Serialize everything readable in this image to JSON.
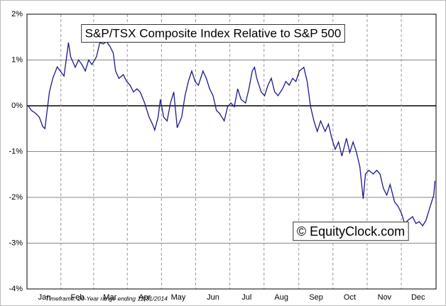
{
  "chart_data": {
    "type": "line",
    "title": "S&P/TSX Composite Index Relative to S&P 500",
    "watermark": "© EquityClock.com",
    "footnote": "Timeframe: 20-Year range ending 12/31/2014",
    "xlim": [
      0,
      365
    ],
    "xticks": [
      {
        "value": 15.5,
        "label": "Jan"
      },
      {
        "value": 45,
        "label": "Feb"
      },
      {
        "value": 74,
        "label": "Mar"
      },
      {
        "value": 105,
        "label": "Apr"
      },
      {
        "value": 135,
        "label": "May"
      },
      {
        "value": 166,
        "label": "Jun"
      },
      {
        "value": 196,
        "label": "Jul"
      },
      {
        "value": 227,
        "label": "Aug"
      },
      {
        "value": 258,
        "label": "Sep"
      },
      {
        "value": 288,
        "label": "Oct"
      },
      {
        "value": 319,
        "label": "Nov"
      },
      {
        "value": 349,
        "label": "Dec"
      }
    ],
    "ylim": [
      -4,
      2
    ],
    "yticks": [
      {
        "value": 2,
        "label": "2%"
      },
      {
        "value": 1,
        "label": "1%"
      },
      {
        "value": 0,
        "label": "0%"
      },
      {
        "value": -1,
        "label": "-1%"
      },
      {
        "value": -2,
        "label": "-2%"
      },
      {
        "value": -3,
        "label": "-3%"
      },
      {
        "value": -4,
        "label": "-4%"
      }
    ],
    "grid": true,
    "x": [
      1,
      4,
      8,
      11,
      14,
      16,
      18,
      20,
      23,
      27,
      30,
      33,
      35,
      37,
      39,
      43,
      46,
      49,
      52,
      55,
      58,
      62,
      65,
      68,
      71,
      74,
      77,
      79,
      82,
      86,
      89,
      92,
      95,
      98,
      101,
      105,
      107,
      109,
      112,
      114,
      117,
      119,
      122,
      125,
      128,
      131,
      134,
      138,
      141,
      144,
      147,
      150,
      153,
      157,
      160,
      163,
      166,
      169,
      172,
      176,
      179,
      182,
      185,
      188,
      191,
      195,
      198,
      201,
      203,
      205,
      209,
      212,
      215,
      218,
      221,
      224,
      228,
      231,
      234,
      237,
      240,
      243,
      247,
      250,
      253,
      256,
      259,
      262,
      266,
      269,
      272,
      275,
      278,
      281,
      285,
      288,
      291,
      294,
      297,
      300,
      302,
      305,
      309,
      312,
      315,
      318,
      321,
      324,
      328,
      331,
      334,
      337,
      340,
      344,
      347,
      350,
      353,
      356,
      359,
      363,
      364
    ],
    "series": [
      {
        "name": "S&P/TSX relative to S&P 500",
        "color": "#1a1a8c",
        "values": [
          0.0,
          -0.1,
          -0.17,
          -0.25,
          -0.45,
          -0.5,
          -0.1,
          0.3,
          0.6,
          0.85,
          0.75,
          0.65,
          1.0,
          1.38,
          1.07,
          0.84,
          1.0,
          0.9,
          0.76,
          1.0,
          0.9,
          1.07,
          1.38,
          1.35,
          1.4,
          1.3,
          1.15,
          0.76,
          0.6,
          0.68,
          0.53,
          0.45,
          0.3,
          0.37,
          0.3,
          0.06,
          -0.1,
          -0.25,
          -0.4,
          -0.53,
          -0.25,
          0.14,
          -0.25,
          -0.33,
          0.06,
          0.3,
          -0.48,
          -0.25,
          0.22,
          0.53,
          0.76,
          0.53,
          0.45,
          0.76,
          0.6,
          0.37,
          0.22,
          -0.1,
          -0.17,
          -0.33,
          -0.02,
          0.06,
          -0.02,
          0.37,
          0.14,
          0.06,
          0.37,
          0.76,
          0.84,
          0.6,
          0.3,
          0.22,
          0.45,
          0.6,
          0.3,
          0.22,
          0.37,
          0.53,
          0.45,
          0.6,
          0.53,
          0.76,
          0.84,
          0.53,
          -0.02,
          -0.33,
          -0.56,
          -0.33,
          -0.56,
          -0.4,
          -0.71,
          -0.95,
          -0.79,
          -1.1,
          -0.71,
          -1.02,
          -0.79,
          -1.02,
          -1.33,
          -2.03,
          -1.49,
          -1.41,
          -1.49,
          -1.41,
          -1.49,
          -1.8,
          -1.95,
          -1.72,
          -2.1,
          -2.19,
          -2.34,
          -2.57,
          -2.5,
          -2.42,
          -2.57,
          -2.53,
          -2.62,
          -2.5,
          -2.26,
          -1.95,
          -1.64
        ]
      }
    ]
  }
}
